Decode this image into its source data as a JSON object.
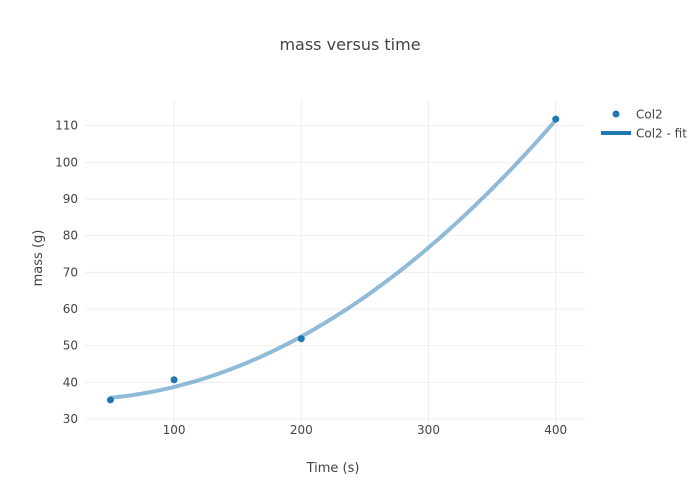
{
  "chart_data": {
    "type": "scatter",
    "title": "mass versus time",
    "xlabel": "Time (s)",
    "ylabel": "mass (g)",
    "xlim": [
      30,
      423
    ],
    "ylim": [
      27,
      117
    ],
    "x_ticks": [
      100,
      200,
      300,
      400
    ],
    "y_ticks": [
      30,
      40,
      50,
      60,
      70,
      80,
      90,
      100,
      110
    ],
    "grid": true,
    "legend_position": "top-right",
    "series": [
      {
        "name": "Col2",
        "mode": "markers",
        "color": "#1f77b4",
        "x": [
          50,
          100,
          200,
          400
        ],
        "y": [
          35.2,
          40.7,
          51.9,
          111.8
        ]
      },
      {
        "name": "Col2 - fit",
        "mode": "line",
        "color": "#1f77b4",
        "line_opacity": 0.5,
        "fit": "quadratic",
        "coefficients": [
          35.48,
          -0.01986,
          0.0005247
        ],
        "x_range": [
          50,
          400
        ]
      }
    ]
  }
}
